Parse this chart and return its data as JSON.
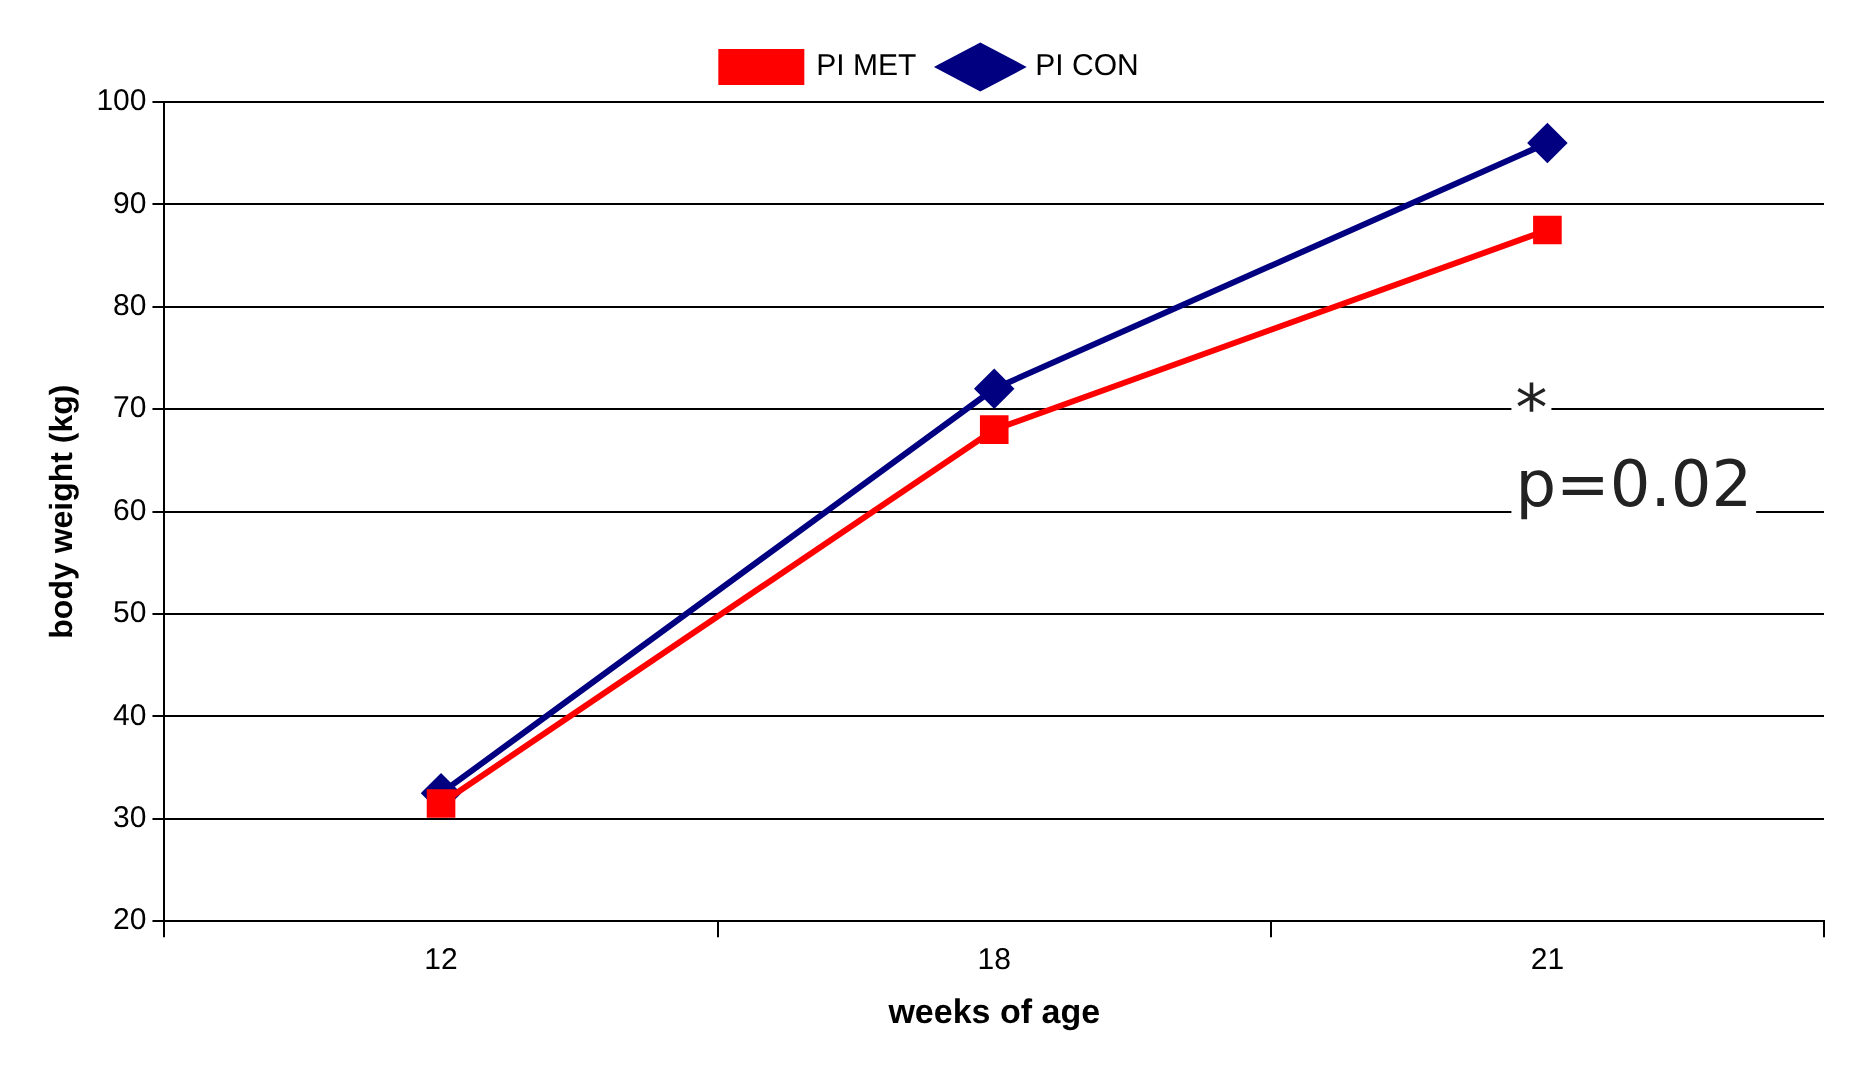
{
  "chart_data": {
    "type": "line",
    "xlabel": "weeks of age",
    "ylabel": "body weight (kg)",
    "categories": [
      "12",
      "18",
      "21"
    ],
    "series": [
      {
        "name": "PI CON",
        "color": "#000080",
        "values": [
          32.5,
          72,
          96
        ],
        "marker": "diamond"
      },
      {
        "name": "PI MET",
        "color": "#ff0000",
        "values": [
          31.5,
          68,
          87.5
        ],
        "marker": "square"
      }
    ],
    "ylim": [
      20,
      100
    ],
    "yticks": [
      20,
      30,
      40,
      50,
      60,
      70,
      80,
      90,
      100
    ],
    "grid": "y",
    "legend": "top",
    "line_style": "solid",
    "annotations": [
      "*",
      "p=0.02"
    ]
  }
}
